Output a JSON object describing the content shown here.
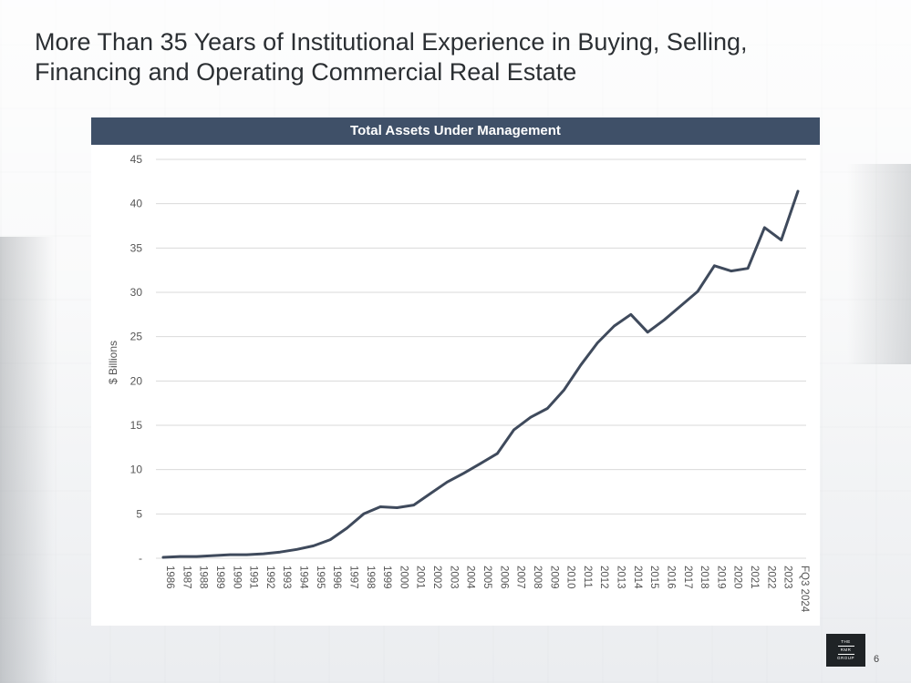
{
  "page": {
    "title": "More Than 35 Years of Institutional Experience in Buying, Selling, Financing and Operating Commercial Real Estate",
    "page_number": "6",
    "logo": {
      "line1": "THE",
      "line2": "RMR",
      "line3": "GROUP"
    }
  },
  "colors": {
    "header": "#3f5068",
    "line": "#3f4a5c",
    "grid": "#d9d9d9"
  },
  "chart_data": {
    "type": "line",
    "title": "Total Assets Under Management",
    "ylabel": "$ Billions",
    "xlabel": "",
    "ylim": [
      0,
      45
    ],
    "yticks": [
      0,
      5,
      10,
      15,
      20,
      25,
      30,
      35,
      40,
      45
    ],
    "ytick_labels": [
      "-",
      "5",
      "10",
      "15",
      "20",
      "25",
      "30",
      "35",
      "40",
      "45"
    ],
    "grid": true,
    "categories": [
      "1986",
      "1987",
      "1988",
      "1989",
      "1990",
      "1991",
      "1992",
      "1993",
      "1994",
      "1995",
      "1996",
      "1997",
      "1998",
      "1999",
      "2000",
      "2001",
      "2002",
      "2003",
      "2004",
      "2005",
      "2006",
      "2007",
      "2008",
      "2009",
      "2010",
      "2011",
      "2012",
      "2013",
      "2014",
      "2015",
      "2016",
      "2017",
      "2018",
      "2019",
      "2020",
      "2021",
      "2022",
      "2023",
      "FQ3 2024"
    ],
    "series": [
      {
        "values": [
          0.1,
          0.2,
          0.2,
          0.3,
          0.4,
          0.4,
          0.5,
          0.7,
          1.0,
          1.4,
          2.1,
          3.4,
          5.0,
          5.8,
          5.7,
          6.0,
          7.3,
          8.6,
          9.6,
          10.7,
          11.8,
          14.5,
          15.9,
          16.9,
          19.0,
          21.8,
          24.3,
          26.2,
          27.5,
          25.5,
          26.9,
          28.5,
          30.1,
          33.0,
          32.4,
          32.7,
          37.3,
          35.9,
          41.4
        ]
      }
    ]
  }
}
